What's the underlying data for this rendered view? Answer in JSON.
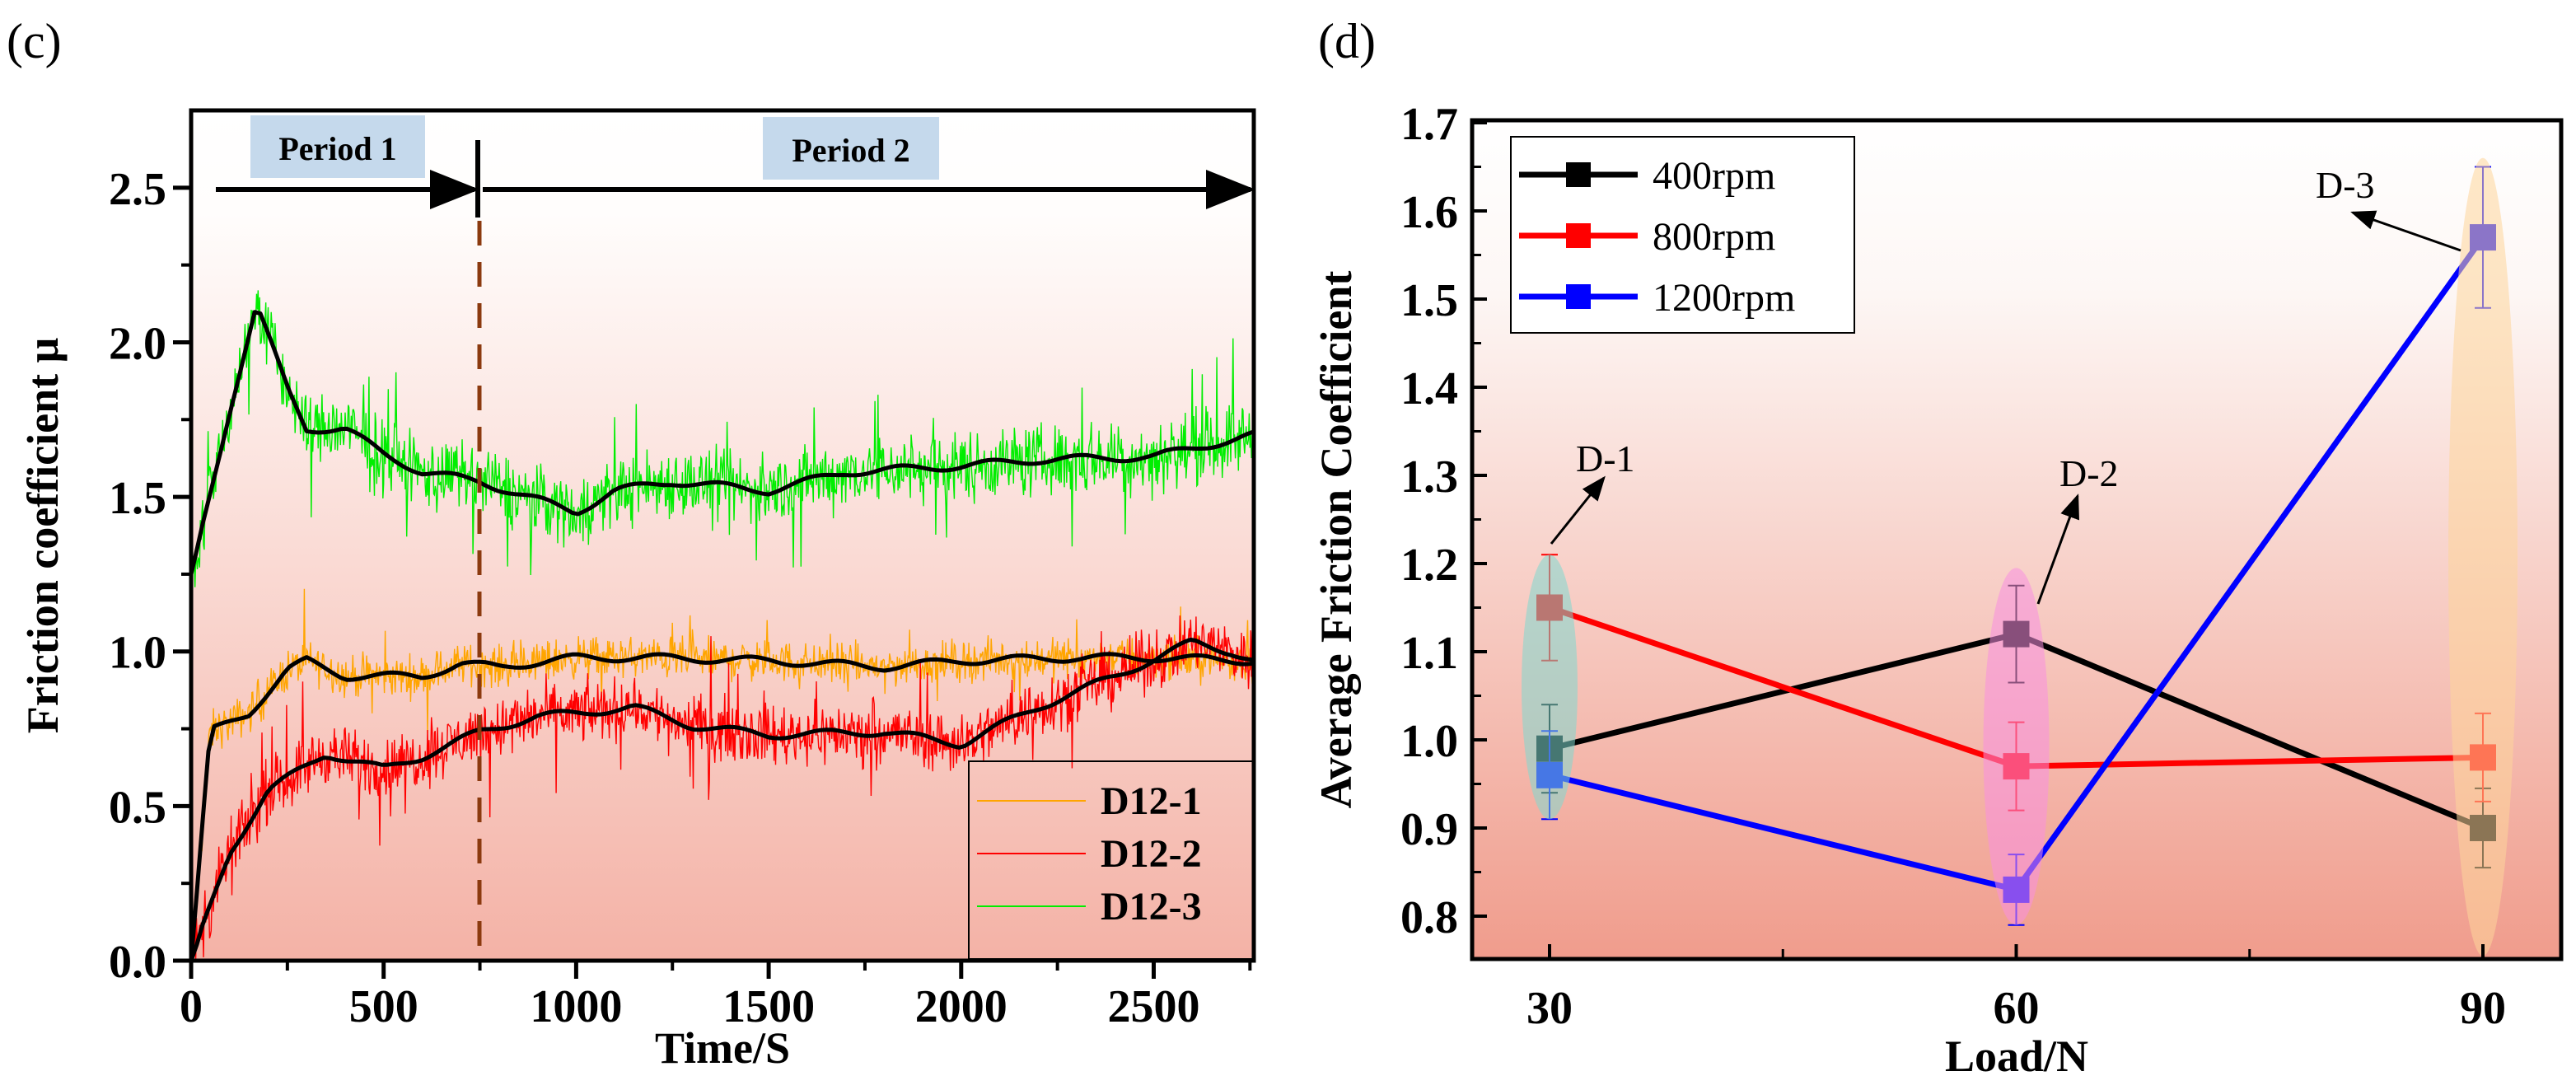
{
  "panels": {
    "left": "(c)",
    "right": "(d)"
  },
  "colors": {
    "D12-1": "#ffa500",
    "D12-2": "#ff0000",
    "D12-3": "#00ee00",
    "400rpm": "#000000",
    "800rpm": "#ff0000",
    "1200rpm": "#0000ff",
    "period_box": "#c5d9ec",
    "divider": "#8b3a0f"
  },
  "chart_data": [
    {
      "type": "line",
      "title": "",
      "xlabel": "Time/S",
      "ylabel": "Friction coefficient μ",
      "xlim": [
        0,
        2760
      ],
      "ylim": [
        0,
        2.75
      ],
      "xticks": [
        0,
        500,
        1000,
        1500,
        2000,
        2500
      ],
      "yticks": [
        "0.0",
        "0.5",
        "1.0",
        "1.5",
        "2.0",
        "2.5"
      ],
      "legend_position": "bottom-right",
      "annotations": [
        {
          "text": "Period 1",
          "x_range": [
            0,
            750
          ]
        },
        {
          "text": "Period 2",
          "x_range": [
            750,
            2760
          ]
        }
      ],
      "divider_x": 750,
      "series": [
        {
          "name": "D12-1",
          "noise": 0.08,
          "x": [
            0,
            50,
            150,
            250,
            300,
            400,
            600,
            700,
            800,
            1000,
            1200,
            1500,
            1800,
            2000,
            2300,
            2500,
            2760
          ],
          "y": [
            0,
            0.74,
            0.8,
            0.94,
            0.97,
            0.92,
            0.92,
            0.96,
            0.95,
            0.98,
            0.98,
            0.97,
            0.95,
            0.97,
            0.98,
            0.98,
            0.97
          ]
        },
        {
          "name": "D12-2",
          "noise": 0.12,
          "x": [
            0,
            100,
            200,
            350,
            500,
            600,
            750,
            900,
            1000,
            1150,
            1300,
            1500,
            1800,
            2000,
            2200,
            2400,
            2600,
            2700,
            2760
          ],
          "y": [
            0,
            0.35,
            0.55,
            0.67,
            0.62,
            0.66,
            0.74,
            0.79,
            0.8,
            0.82,
            0.76,
            0.73,
            0.74,
            0.7,
            0.82,
            0.92,
            1.03,
            1.0,
            0.97
          ]
        },
        {
          "name": "D12-3",
          "noise": 0.14,
          "x": [
            0,
            100,
            170,
            250,
            300,
            400,
            500,
            600,
            750,
            900,
            1000,
            1100,
            1250,
            1500,
            1700,
            2000,
            2200,
            2500,
            2760
          ],
          "y": [
            1.25,
            1.78,
            2.12,
            1.85,
            1.72,
            1.72,
            1.64,
            1.58,
            1.55,
            1.49,
            1.45,
            1.52,
            1.55,
            1.52,
            1.58,
            1.6,
            1.62,
            1.63,
            1.7
          ]
        }
      ]
    },
    {
      "type": "line",
      "title": "",
      "xlabel": "Load/N",
      "ylabel": "Average Friction Coefficient",
      "xlim": [
        25,
        95
      ],
      "ylim": [
        0.75,
        1.71
      ],
      "xticks": [
        "30",
        "60",
        "90"
      ],
      "yticks": [
        "0.8",
        "0.9",
        "1.0",
        "1.1",
        "1.2",
        "1.3",
        "1.4",
        "1.5",
        "1.6",
        "1.7"
      ],
      "legend_position": "top-left",
      "x": [
        30,
        60,
        90
      ],
      "series": [
        {
          "name": "400rpm",
          "values": [
            0.99,
            1.12,
            0.9
          ],
          "errors": [
            0.05,
            0.055,
            0.045
          ]
        },
        {
          "name": "800rpm",
          "values": [
            1.15,
            0.97,
            0.98
          ],
          "errors": [
            0.06,
            0.05,
            0.05
          ]
        },
        {
          "name": "1200rpm",
          "values": [
            0.96,
            0.83,
            1.57
          ],
          "errors": [
            0.05,
            0.04,
            0.08
          ]
        }
      ],
      "groups": [
        {
          "label": "D-1",
          "x": 30,
          "y_range": [
            0.91,
            1.21
          ],
          "color": "#7fd8d0"
        },
        {
          "label": "D-2",
          "x": 60,
          "y_range": [
            0.79,
            1.195
          ],
          "color": "#f78fe0"
        },
        {
          "label": "D-3",
          "x": 90,
          "y_range": [
            0.755,
            1.66
          ],
          "color": "#fdd69a"
        }
      ]
    }
  ]
}
